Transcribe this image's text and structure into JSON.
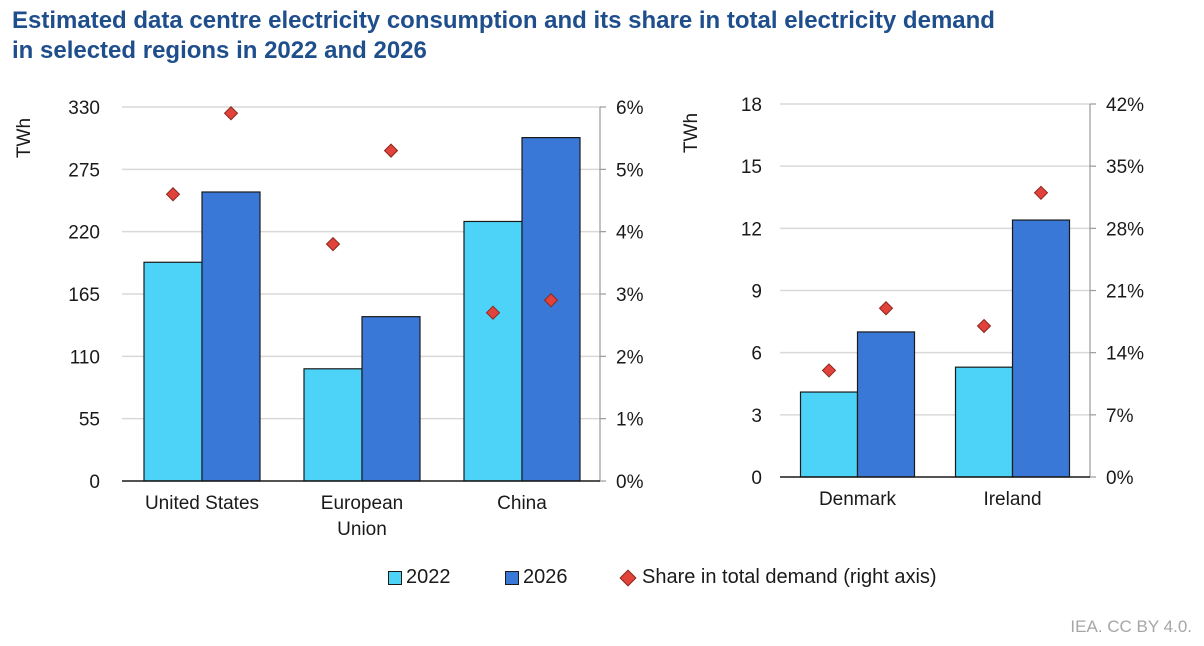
{
  "title_line1": "Estimated data centre electricity consumption and its share in total electricity demand",
  "title_line2": "in selected regions in 2022 and 2026",
  "source": "IEA. CC BY 4.0.",
  "colors": {
    "y2022": "#4dd2f8",
    "y2026": "#3a78d8",
    "share": "#e1423a",
    "title": "#1f4e8c",
    "grid": "#d9d9d9"
  },
  "legend": [
    {
      "label": "2022",
      "kind": "swatch",
      "color": "#4dd2f8"
    },
    {
      "label": "2026",
      "kind": "swatch",
      "color": "#3a78d8"
    },
    {
      "label": "Share in total demand (right axis)",
      "kind": "diamond",
      "color": "#e1423a"
    }
  ],
  "chart_data": [
    {
      "type": "bar",
      "categories": [
        [
          "United States"
        ],
        [
          "European",
          "Union"
        ],
        [
          "China"
        ]
      ],
      "ylabel": "TWh",
      "ylim": [
        0,
        330
      ],
      "yticks": [
        0,
        55,
        110,
        165,
        220,
        275,
        330
      ],
      "y2lim": [
        0,
        6
      ],
      "y2ticks": [
        "0%",
        "1%",
        "2%",
        "3%",
        "4%",
        "5%",
        "6%"
      ],
      "grid": true,
      "series": [
        {
          "name": "2022",
          "values": [
            193,
            99,
            229
          ]
        },
        {
          "name": "2026",
          "values": [
            255,
            145,
            303
          ]
        },
        {
          "name": "Share in total demand (right axis)",
          "axis": "right",
          "values_2022": [
            4.6,
            3.8,
            2.7
          ],
          "values_2026": [
            5.9,
            5.3,
            2.9
          ]
        }
      ]
    },
    {
      "type": "bar",
      "categories": [
        [
          "Denmark"
        ],
        [
          "Ireland"
        ]
      ],
      "ylabel": "TWh",
      "ylim": [
        0,
        18
      ],
      "yticks": [
        0,
        3,
        6,
        9,
        12,
        15,
        18
      ],
      "y2lim": [
        0,
        42
      ],
      "y2ticks": [
        "0%",
        "7%",
        "14%",
        "21%",
        "28%",
        "35%",
        "42%"
      ],
      "grid": true,
      "series": [
        {
          "name": "2022",
          "values": [
            4.1,
            5.3
          ]
        },
        {
          "name": "2026",
          "values": [
            7.0,
            12.4
          ]
        },
        {
          "name": "Share in total demand (right axis)",
          "axis": "right",
          "values_2022": [
            12,
            17
          ],
          "values_2026": [
            19,
            32
          ]
        }
      ]
    }
  ]
}
